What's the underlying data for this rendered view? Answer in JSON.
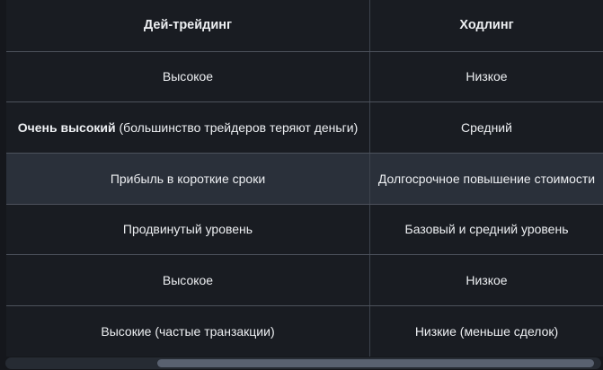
{
  "table": {
    "columns": [
      {
        "header": "Дей-трейдинг"
      },
      {
        "header": "Ходлинг"
      }
    ],
    "rows": [
      {
        "highlighted": false,
        "cells": [
          {
            "text": "Высокое"
          },
          {
            "text": "Низкое"
          }
        ]
      },
      {
        "highlighted": false,
        "cells": [
          {
            "bold": "Очень высокий",
            "text": "(большинство трейдеров теряют деньги)"
          },
          {
            "text": "Средний"
          }
        ]
      },
      {
        "highlighted": true,
        "cells": [
          {
            "text": "Прибыль в короткие сроки"
          },
          {
            "text": "Долгосрочное повышение стоимости"
          }
        ]
      },
      {
        "highlighted": false,
        "cells": [
          {
            "text": "Продвинутый уровень"
          },
          {
            "text": "Базовый и средний уровень"
          }
        ]
      },
      {
        "highlighted": false,
        "cells": [
          {
            "text": "Высокое"
          },
          {
            "text": "Низкое"
          }
        ]
      },
      {
        "highlighted": false,
        "cells": [
          {
            "text": "Высокие (частые транзакции)"
          },
          {
            "text": "Низкие (меньше сделок)"
          }
        ]
      }
    ]
  },
  "scrollbar": {
    "orientation": "horizontal",
    "position": "scrolled-right"
  },
  "colors": {
    "page_bg": "#15171c",
    "table_bg": "#191c22",
    "row_highlight": "#2a303a",
    "row_divider": "#4d525c",
    "column_divider": "#3d434d",
    "text": "#edeff2",
    "scrollbar_track": "#262b33",
    "scrollbar_thumb": "#596170"
  }
}
